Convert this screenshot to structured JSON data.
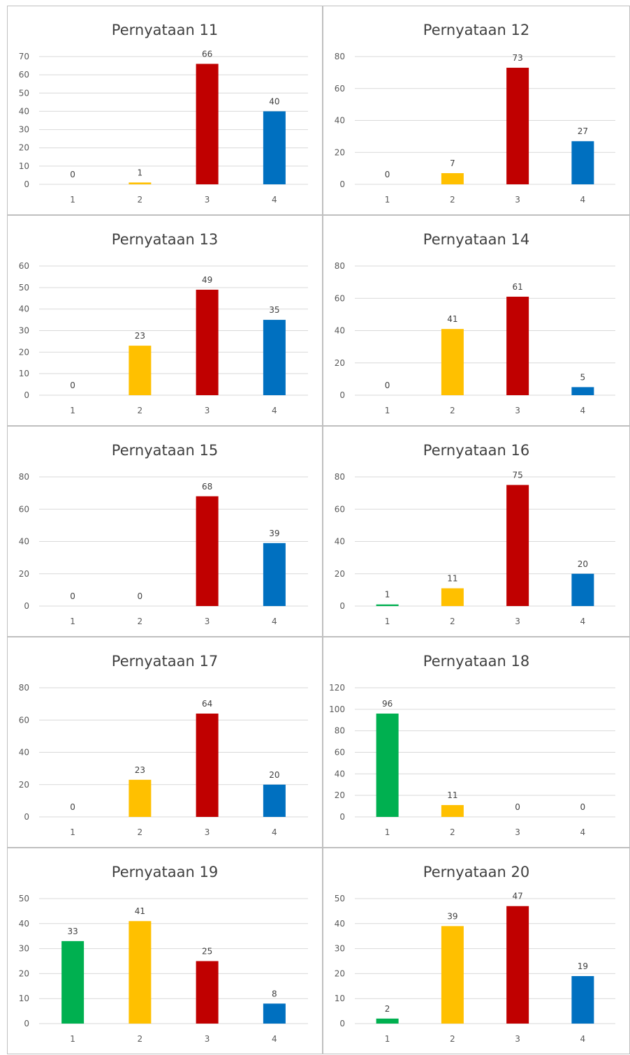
{
  "colors": {
    "1": "#00b050",
    "2": "#ffc000",
    "3": "#c00000",
    "4": "#0070c0",
    "grid": "#d9d9d9"
  },
  "chart_data": [
    {
      "type": "bar",
      "title": "Pernyataan 11",
      "categories": [
        "1",
        "2",
        "3",
        "4"
      ],
      "values": [
        0,
        1,
        66,
        40
      ],
      "ylim": [
        0,
        70
      ],
      "yticks": [
        0,
        10,
        20,
        30,
        40,
        50,
        60,
        70
      ],
      "grid": true,
      "legend": "none"
    },
    {
      "type": "bar",
      "title": "Pernyataan 12",
      "categories": [
        "1",
        "2",
        "3",
        "4"
      ],
      "values": [
        0,
        7,
        73,
        27
      ],
      "ylim": [
        0,
        80
      ],
      "yticks": [
        0,
        20,
        40,
        60,
        80
      ],
      "grid": true,
      "legend": "none"
    },
    {
      "type": "bar",
      "title": "Pernyataan 13",
      "categories": [
        "1",
        "2",
        "3",
        "4"
      ],
      "values": [
        0,
        23,
        49,
        35
      ],
      "ylim": [
        0,
        60
      ],
      "yticks": [
        0,
        10,
        20,
        30,
        40,
        50,
        60
      ],
      "grid": true,
      "legend": "none"
    },
    {
      "type": "bar",
      "title": "Pernyataan 14",
      "categories": [
        "1",
        "2",
        "3",
        "4"
      ],
      "values": [
        0,
        41,
        61,
        5
      ],
      "ylim": [
        0,
        80
      ],
      "yticks": [
        0,
        20,
        40,
        60,
        80
      ],
      "grid": true,
      "legend": "none"
    },
    {
      "type": "bar",
      "title": "Pernyataan 15",
      "categories": [
        "1",
        "2",
        "3",
        "4"
      ],
      "values": [
        0,
        0,
        68,
        39
      ],
      "ylim": [
        0,
        80
      ],
      "yticks": [
        0,
        20,
        40,
        60,
        80
      ],
      "grid": true,
      "legend": "none"
    },
    {
      "type": "bar",
      "title": "Pernyataan 16",
      "categories": [
        "1",
        "2",
        "3",
        "4"
      ],
      "values": [
        1,
        11,
        75,
        20
      ],
      "ylim": [
        0,
        80
      ],
      "yticks": [
        0,
        20,
        40,
        60,
        80
      ],
      "grid": true,
      "legend": "none"
    },
    {
      "type": "bar",
      "title": "Pernyataan 17",
      "categories": [
        "1",
        "2",
        "3",
        "4"
      ],
      "values": [
        0,
        23,
        64,
        20
      ],
      "ylim": [
        0,
        80
      ],
      "yticks": [
        0,
        20,
        40,
        60,
        80
      ],
      "grid": true,
      "legend": "none"
    },
    {
      "type": "bar",
      "title": "Pernyataan 18",
      "categories": [
        "1",
        "2",
        "3",
        "4"
      ],
      "values": [
        96,
        11,
        0,
        0
      ],
      "ylim": [
        0,
        120
      ],
      "yticks": [
        0,
        20,
        40,
        60,
        80,
        100,
        120
      ],
      "grid": true,
      "legend": "none"
    },
    {
      "type": "bar",
      "title": "Pernyataan 19",
      "categories": [
        "1",
        "2",
        "3",
        "4"
      ],
      "values": [
        33,
        41,
        25,
        8
      ],
      "ylim": [
        0,
        50
      ],
      "yticks": [
        0,
        10,
        20,
        30,
        40,
        50
      ],
      "grid": true,
      "legend": "none"
    },
    {
      "type": "bar",
      "title": "Pernyataan 20",
      "categories": [
        "1",
        "2",
        "3",
        "4"
      ],
      "values": [
        2,
        39,
        47,
        19
      ],
      "ylim": [
        0,
        50
      ],
      "yticks": [
        0,
        10,
        20,
        30,
        40,
        50
      ],
      "grid": true,
      "legend": "none"
    }
  ]
}
